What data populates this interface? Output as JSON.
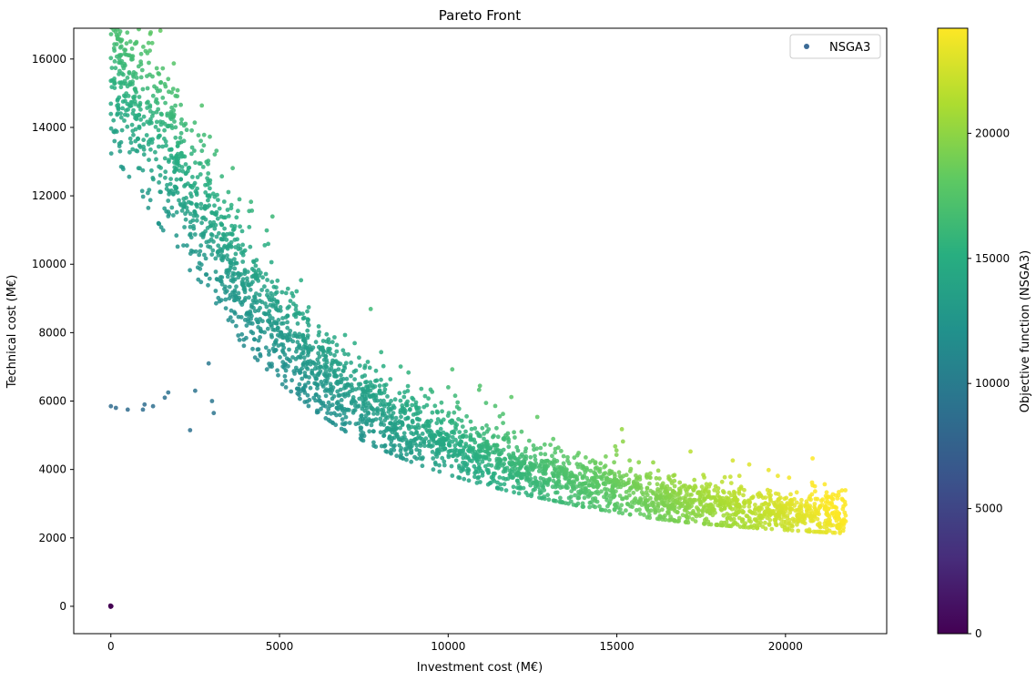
{
  "chart_data": {
    "type": "scatter",
    "title": "Pareto Front",
    "xlabel": "Investment cost (M€)",
    "ylabel": "Technical cost (M€)",
    "xlim": [
      -1100,
      23000
    ],
    "ylim": [
      -800,
      16900
    ],
    "xticks": [
      0,
      5000,
      10000,
      15000,
      20000
    ],
    "xtick_labels": [
      "0",
      "5000",
      "10000",
      "15000",
      "20000"
    ],
    "yticks": [
      0,
      2000,
      4000,
      6000,
      8000,
      10000,
      12000,
      14000,
      16000
    ],
    "ytick_labels": [
      "0",
      "2000",
      "4000",
      "6000",
      "8000",
      "10000",
      "12000",
      "14000",
      "16000"
    ],
    "grid": false,
    "legend": {
      "position": "top-right",
      "entries": [
        "NSGA3"
      ]
    },
    "colorbar": {
      "label": "Objective function (NSGA3)",
      "colormap": "viridis",
      "range": [
        0,
        24200
      ],
      "ticks": [
        0,
        5000,
        10000,
        15000,
        20000
      ],
      "tick_labels": [
        "0",
        "5000",
        "10000",
        "15000",
        "20000"
      ]
    },
    "series": [
      {
        "name": "NSGA3",
        "point_count_approx": 3500,
        "front_trend": {
          "x": [
            0,
            500,
            1000,
            2000,
            3000,
            4000,
            5000,
            6000,
            7000,
            8000,
            9000,
            10000,
            11000,
            12000,
            13000,
            14000,
            15000,
            16000,
            17000,
            18000,
            19000,
            20000,
            21000,
            21800
          ],
          "y": [
            16100,
            15400,
            14400,
            12600,
            10800,
            9200,
            8000,
            7000,
            6200,
            5600,
            5100,
            4700,
            4350,
            4050,
            3800,
            3550,
            3350,
            3150,
            3000,
            2900,
            2800,
            2720,
            2650,
            2600
          ]
        },
        "outliers": {
          "x": [
            0,
            150,
            500,
            950,
            1000,
            1250,
            1600,
            1700,
            2350,
            2500,
            2900,
            3000,
            3050,
            0
          ],
          "y": [
            5850,
            5800,
            5750,
            5750,
            5900,
            5850,
            6100,
            6250,
            5150,
            6300,
            7100,
            6000,
            5650,
            0
          ],
          "values": [
            8500,
            8500,
            8500,
            8700,
            8700,
            8800,
            9000,
            9100,
            9000,
            9300,
            9800,
            9500,
            9400,
            0
          ]
        },
        "color_value_trend": "Objective function ≈ investment cost + technical cost"
      }
    ]
  }
}
